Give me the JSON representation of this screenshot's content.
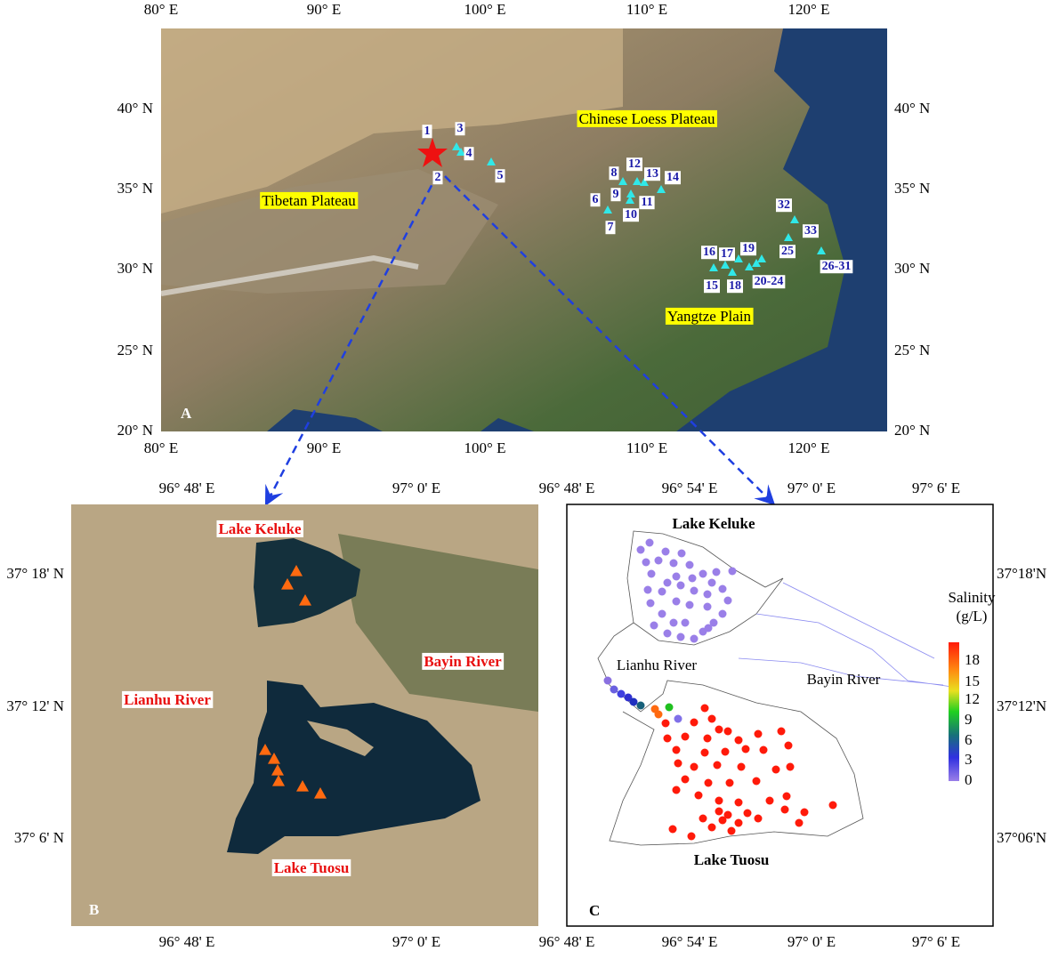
{
  "panel_a": {
    "label": "A",
    "top_ticks": [
      "80° E",
      "90° E",
      "100° E",
      "110° E",
      "120° E"
    ],
    "bottom_ticks": [
      "80° E",
      "90° E",
      "100° E",
      "110° E",
      "120° E"
    ],
    "left_ticks": [
      "40° N",
      "35° N",
      "30° N",
      "25° N",
      "20° N"
    ],
    "right_ticks": [
      "40° N",
      "35° N",
      "30° N",
      "25° N",
      "20° N"
    ],
    "regions": [
      "Chinese Loess Plateau",
      "Tibetan Plateau",
      "Yangtze Plain"
    ],
    "site_labels": [
      "1",
      "2",
      "3",
      "4",
      "5",
      "6",
      "7",
      "8",
      "9",
      "10",
      "11",
      "12",
      "13",
      "14",
      "15",
      "16",
      "17",
      "18",
      "19",
      "20-24",
      "25",
      "26-31",
      "32",
      "33"
    ]
  },
  "panel_b": {
    "label": "B",
    "top_ticks": [
      "96° 48' E",
      "97° 0' E"
    ],
    "bottom_ticks": [
      "96° 48' E",
      "97° 0' E"
    ],
    "left_ticks": [
      "37° 18' N",
      "37° 12' N",
      "37° 6' N"
    ],
    "places": [
      "Lake Keluke",
      "Bayin River",
      "Lianhu River",
      "Lake Tuosu"
    ]
  },
  "panel_c": {
    "label": "C",
    "top_ticks": [
      "96° 48' E",
      "96° 54' E",
      "97° 0' E",
      "97° 6' E"
    ],
    "bottom_ticks": [
      "96° 48' E",
      "96° 54' E",
      "97° 0' E",
      "97° 6' E"
    ],
    "right_ticks": [
      "37°18'N",
      "37°12'N",
      "37°06'N"
    ],
    "places": [
      "Lake Keluke",
      "Lianhu River",
      "Bayin River",
      "Lake Tuosu"
    ],
    "colorbar_title": [
      "Salinity",
      "(g/L)"
    ],
    "colorbar_ticks": [
      "18",
      "15",
      "12",
      "9",
      "6",
      "3",
      "0"
    ]
  }
}
